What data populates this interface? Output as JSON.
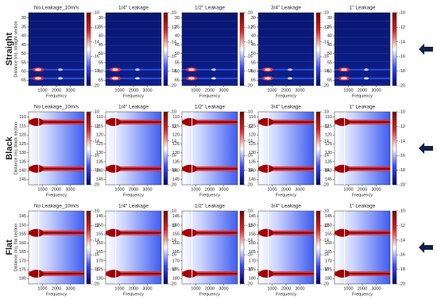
{
  "rows": [
    {
      "label": "Straight",
      "ylabel": "Distance (m), straight section",
      "yticks": [
        30,
        35,
        40,
        45,
        50,
        55,
        60,
        65
      ],
      "ylim": [
        27,
        68
      ]
    },
    {
      "label": "Black",
      "ylabel": "Distance (m), black section",
      "yticks": [
        110,
        115,
        120,
        125,
        130,
        135,
        140,
        145
      ],
      "ylim": [
        107,
        148
      ]
    },
    {
      "label": "Flat",
      "ylabel": "Distance (m), flat section",
      "yticks": [
        145,
        150,
        155,
        160,
        165,
        170,
        175,
        180
      ],
      "ylim": [
        142,
        183
      ]
    }
  ],
  "columns": [
    "No Leakage_10m/s",
    "1/4\" Leakage",
    "1/2\" Leakage",
    "3/4\" Leakage",
    "1\" Leakage"
  ],
  "xlabel": "Frequency",
  "xticks": [
    1000,
    2000,
    3000
  ],
  "xlim": [
    0,
    4000
  ],
  "colorbar_ticks": [
    -10,
    -12,
    -14,
    -16,
    -18,
    -20
  ],
  "colorbar_lim": [
    -10,
    -20
  ]
}
